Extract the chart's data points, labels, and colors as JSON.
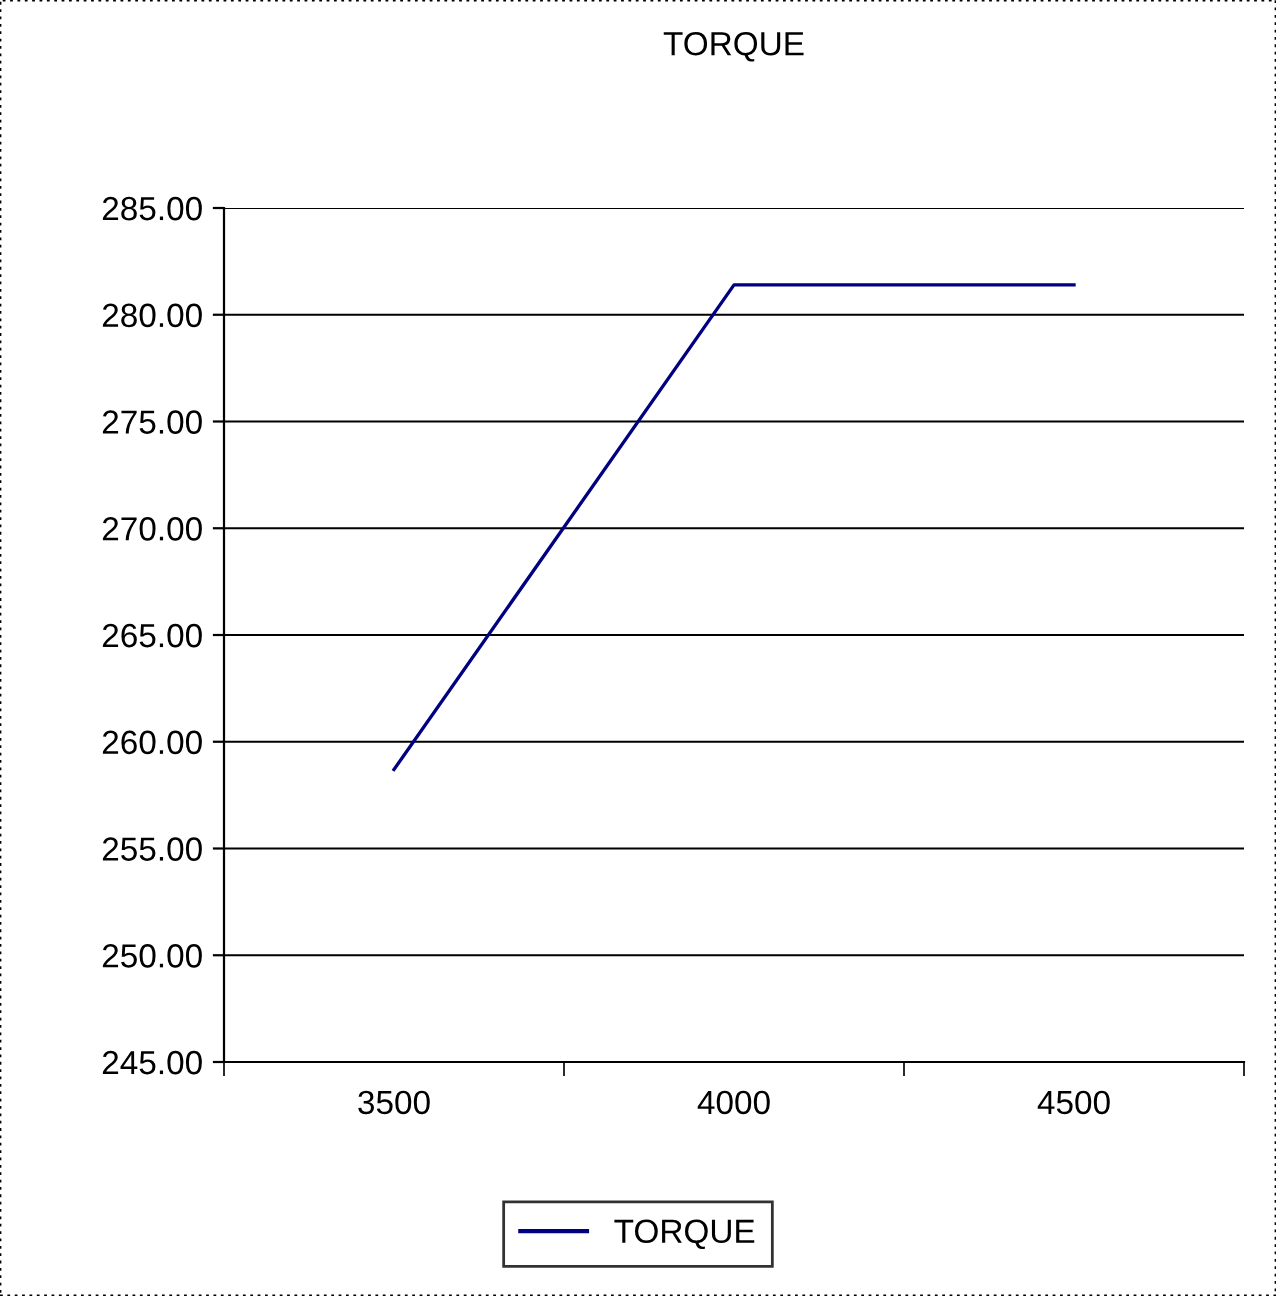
{
  "chart_data": {
    "type": "line",
    "title": "TORQUE",
    "categories": [
      "3500",
      "4000",
      "4500"
    ],
    "series": [
      {
        "name": "TORQUE",
        "color": "#000080",
        "values": [
          258.7,
          281.4,
          281.4
        ]
      }
    ],
    "ylim": [
      245,
      285
    ],
    "yticks": [
      {
        "value": 245,
        "label": "245.00"
      },
      {
        "value": 250,
        "label": "250.00"
      },
      {
        "value": 255,
        "label": "255.00"
      },
      {
        "value": 260,
        "label": "260.00"
      },
      {
        "value": 265,
        "label": "265.00"
      },
      {
        "value": 270,
        "label": "270.00"
      },
      {
        "value": 275,
        "label": "275.00"
      },
      {
        "value": 280,
        "label": "280.00"
      },
      {
        "value": 285,
        "label": "285.00"
      }
    ],
    "grid": "y",
    "legend": "bottom",
    "marker": "none",
    "line_style": "solid"
  }
}
